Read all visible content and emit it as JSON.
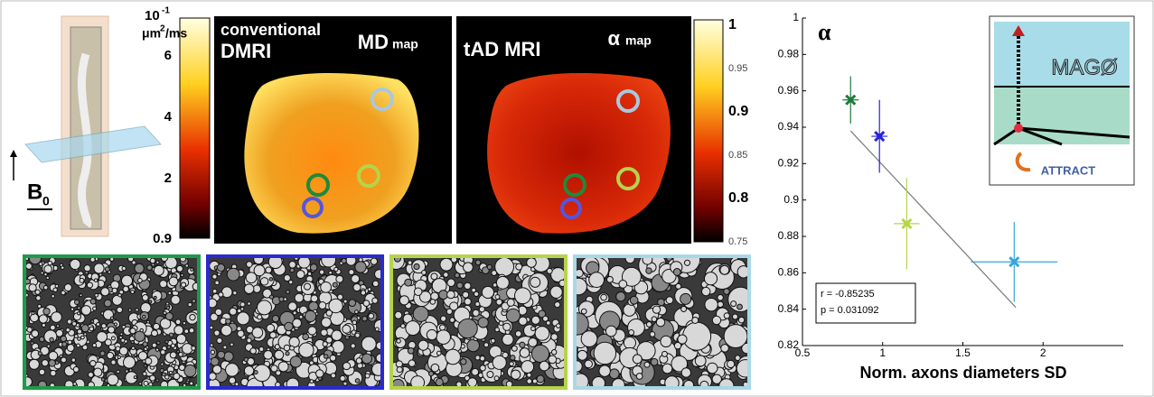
{
  "b0": {
    "main": "B",
    "sub": "0"
  },
  "md_colorbar": {
    "unit": {
      "base": "10",
      "exp": "-1",
      "unit": "μm",
      "unit_exp": "2",
      "per": "/ms"
    },
    "ticks": [
      6,
      4,
      2,
      0.9
    ]
  },
  "md_map": {
    "title1": "conventional",
    "title2": "DMRI",
    "label": "MD",
    "label_sub": "map"
  },
  "alpha_map": {
    "title": "tAD MRI",
    "label": "α",
    "label_sub": "map"
  },
  "alpha_colorbar": {
    "ticks": [
      1,
      0.95,
      0.9,
      0.85,
      0.8,
      0.75
    ]
  },
  "logo": {
    "mago": "MAGØ",
    "attract": "ATTRACT"
  },
  "chart_data": {
    "type": "scatter",
    "y_label": "α",
    "x_label": "Norm. axons diameters SD",
    "xlim": [
      0.5,
      2.5
    ],
    "xticks": [
      0.5,
      1,
      1.5,
      2
    ],
    "ylim": [
      0.82,
      1
    ],
    "yticks": [
      0.82,
      0.84,
      0.86,
      0.88,
      0.9,
      0.92,
      0.94,
      0.96,
      0.98,
      1
    ],
    "series": [
      {
        "color": "#1e7a3a",
        "x": [
          0.8
        ],
        "values": [
          0.955
        ],
        "xerr": [
          0.05
        ],
        "yerr": [
          0.013
        ]
      },
      {
        "color": "#2222dd",
        "x": [
          0.98
        ],
        "values": [
          0.935
        ],
        "xerr": [
          0.05
        ],
        "yerr": [
          0.02
        ]
      },
      {
        "color": "#b5d44a",
        "x": [
          1.15
        ],
        "values": [
          0.887
        ],
        "xerr": [
          0.08
        ],
        "yerr": [
          0.025
        ]
      },
      {
        "color": "#3aa5d8",
        "x": [
          1.82
        ],
        "values": [
          0.866
        ],
        "xerr": [
          0.27
        ],
        "yerr": [
          0.022
        ]
      }
    ],
    "fit": {
      "color": "#808080",
      "x": [
        0.8,
        1.83
      ],
      "values": [
        0.938,
        0.841
      ]
    },
    "annotations": [
      "r = -0.85235",
      "p = 0.031092"
    ]
  }
}
